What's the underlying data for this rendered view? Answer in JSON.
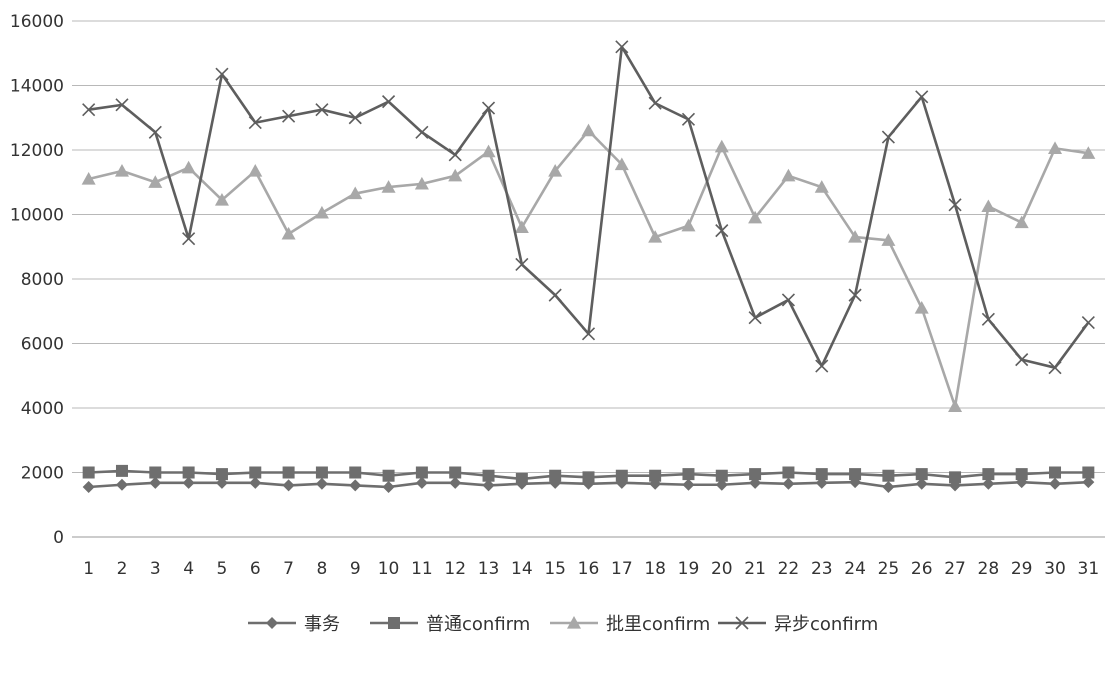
{
  "chart_data": {
    "type": "line",
    "title": "",
    "xlabel": "",
    "ylabel": "",
    "ylim": [
      0,
      16000
    ],
    "yticks": [
      0,
      2000,
      4000,
      6000,
      8000,
      10000,
      12000,
      14000,
      16000
    ],
    "ytick_labels": [
      "0",
      "2000",
      "4000",
      "6000",
      "8000",
      "10000",
      "12000",
      "14000",
      "16000"
    ],
    "grid": true,
    "legend_position": "bottom",
    "categories": [
      "1",
      "2",
      "3",
      "4",
      "5",
      "6",
      "7",
      "8",
      "9",
      "10",
      "11",
      "12",
      "13",
      "14",
      "15",
      "16",
      "17",
      "18",
      "19",
      "20",
      "21",
      "22",
      "23",
      "24",
      "25",
      "26",
      "27",
      "28",
      "29",
      "30",
      "31"
    ],
    "series": [
      {
        "name": "事务",
        "marker": "diamond",
        "color": "#6e6e6e",
        "values": [
          1550,
          1620,
          1680,
          1680,
          1680,
          1680,
          1600,
          1650,
          1600,
          1550,
          1680,
          1680,
          1600,
          1650,
          1680,
          1650,
          1680,
          1650,
          1620,
          1620,
          1680,
          1650,
          1680,
          1700,
          1550,
          1650,
          1600,
          1650,
          1700,
          1650,
          1700
        ]
      },
      {
        "name": "普通confirm",
        "marker": "square",
        "color": "#6e6e6e",
        "values": [
          2000,
          2050,
          2000,
          2000,
          1950,
          2000,
          2000,
          2000,
          2000,
          1900,
          2000,
          2000,
          1900,
          1800,
          1900,
          1850,
          1900,
          1900,
          1950,
          1900,
          1950,
          2000,
          1950,
          1950,
          1900,
          1950,
          1850,
          1950,
          1950,
          2000,
          2000
        ]
      },
      {
        "name": "批里confirm",
        "marker": "triangle",
        "color": "#a8a8a8",
        "values": [
          11100,
          11350,
          11000,
          11450,
          10450,
          11350,
          9400,
          10050,
          10650,
          10850,
          10950,
          11200,
          11950,
          9600,
          11350,
          12600,
          11550,
          9300,
          9650,
          12100,
          9900,
          11200,
          10850,
          9300,
          9200,
          7100,
          4050,
          10250,
          9750,
          12050,
          11900
        ]
      },
      {
        "name": "异步confirm",
        "marker": "x",
        "color": "#5e5e5e",
        "values": [
          13250,
          13400,
          12550,
          9250,
          14350,
          12850,
          13050,
          13250,
          13000,
          13500,
          12550,
          11850,
          13300,
          8450,
          7500,
          6300,
          15200,
          13450,
          12950,
          9500,
          6800,
          7350,
          5300,
          7500,
          12400,
          13650,
          10300,
          6750,
          5500,
          5250,
          6650
        ]
      }
    ]
  }
}
